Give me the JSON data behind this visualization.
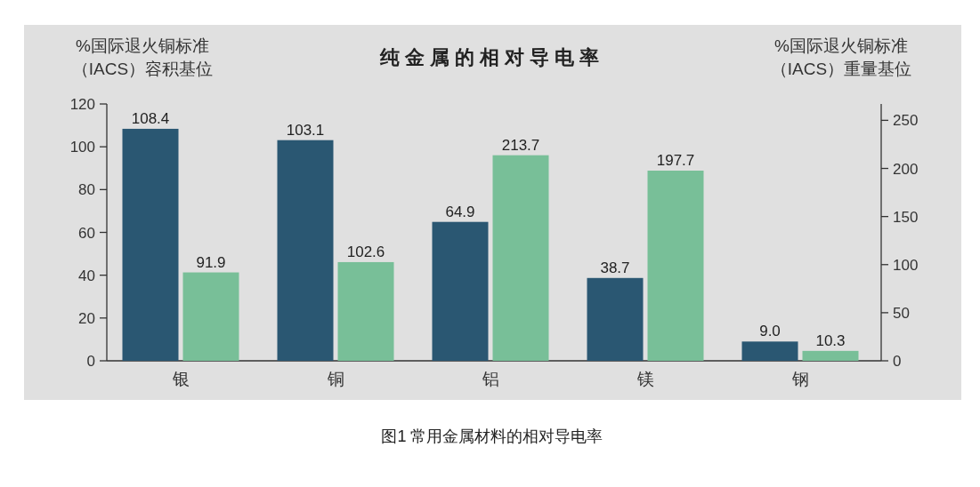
{
  "chart_data": {
    "type": "bar",
    "title": "纯金属的相对导电率",
    "ylabel": "%国际退火铜标准（IACS）容积基位",
    "y2label": "%国际退火铜标准（IACS）重量基位",
    "annotations": [
      "图1 常用金属材料的相对导电率"
    ],
    "categories": [
      "银",
      "铜",
      "铝",
      "镁",
      "钢"
    ],
    "series": [
      {
        "color": "#2a5772",
        "values": [
          108.4,
          103.1,
          64.9,
          38.7,
          9.0
        ],
        "value_labels": [
          "108.4",
          "103.1",
          "64.9",
          "38.7",
          "9.0"
        ]
      },
      {
        "color": "#78bf98",
        "axis": "y2",
        "values": [
          91.9,
          102.6,
          213.7,
          197.7,
          10.3
        ],
        "value_labels": [
          "91.9",
          "102.6",
          "213.7",
          "197.7",
          "10.3"
        ]
      }
    ],
    "ylim": [
      0,
      120
    ],
    "yticks": [
      0,
      20,
      40,
      60,
      80,
      100,
      120
    ],
    "y2lim": [
      0,
      267
    ],
    "y2ticks": [
      0,
      50,
      100,
      150,
      200,
      250
    ],
    "data_labels": false
  }
}
